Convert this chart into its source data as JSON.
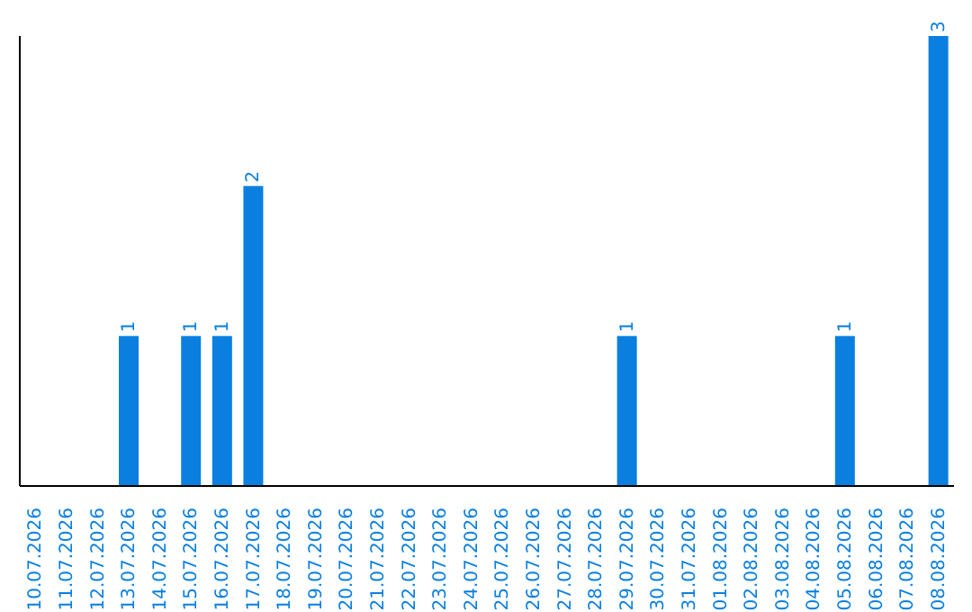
{
  "chart_data": {
    "type": "bar",
    "categories": [
      "10.07.2026",
      "11.07.2026",
      "12.07.2026",
      "13.07.2026",
      "14.07.2026",
      "15.07.2026",
      "16.07.2026",
      "17.07.2026",
      "18.07.2026",
      "19.07.2026",
      "20.07.2026",
      "21.07.2026",
      "22.07.2026",
      "23.07.2026",
      "24.07.2026",
      "25.07.2026",
      "26.07.2026",
      "27.07.2026",
      "28.07.2026",
      "29.07.2026",
      "30.07.2026",
      "31.07.2026",
      "01.08.2026",
      "02.08.2026",
      "03.08.2026",
      "04.08.2026",
      "05.08.2026",
      "06.08.2026",
      "07.08.2026",
      "08.08.2026"
    ],
    "values": [
      0,
      0,
      0,
      1,
      0,
      1,
      1,
      2,
      0,
      0,
      0,
      0,
      0,
      0,
      0,
      0,
      0,
      0,
      0,
      1,
      0,
      0,
      0,
      0,
      0,
      0,
      1,
      0,
      0,
      3
    ],
    "value_labels": [
      null,
      null,
      null,
      "1",
      null,
      "1",
      "1",
      "2",
      null,
      null,
      null,
      null,
      null,
      null,
      null,
      null,
      null,
      null,
      null,
      "1",
      null,
      null,
      null,
      null,
      null,
      null,
      "1",
      null,
      null,
      "3"
    ],
    "color": "#0a7fe0",
    "tick_labels": "x"
  }
}
